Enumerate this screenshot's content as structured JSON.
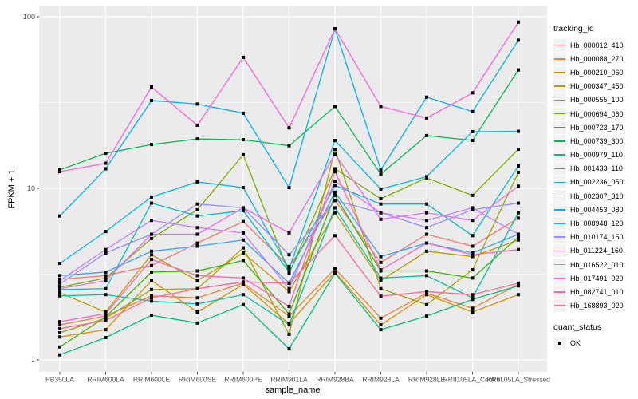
{
  "chart_data": {
    "type": "line",
    "title": "",
    "xlabel": "sample_name",
    "ylabel": "FPKM + 1",
    "x_categories": [
      "PB350LA",
      "RRIM600LA",
      "RRIM600LE",
      "RRIM600SE",
      "RRIM600PE",
      "RRIM901LA",
      "RRIM928BA",
      "RRIM928LA",
      "RRIM928LE",
      "RRII105LA_Control",
      "RRII105LA_Stressed"
    ],
    "y_scale": "log10",
    "y_ticks": [
      1,
      10,
      100
    ],
    "y_minor_ticks": [
      3.1623,
      31.6228
    ],
    "ylim": [
      0.85,
      115
    ],
    "grid": "major and minor, white on grey panel",
    "legend_position": "right",
    "colors": {
      "panel_bg": "#EBEBEB",
      "gridline": "#FFFFFF",
      "tick_label": "#4D4D4D",
      "tick_mark": "#333333",
      "marker": "#000000",
      "legend_key_bg": "#F2F2F2"
    },
    "marker": {
      "shape": "square",
      "size": 4
    },
    "legend": {
      "title": "tracking_id"
    },
    "quant_status": {
      "title": "quant_status",
      "items": [
        {
          "label": "OK",
          "marker": "black-square"
        }
      ]
    },
    "series": [
      {
        "name": "Hb_000012_410",
        "color": "#F8766D",
        "values": [
          2.95,
          3.1,
          3.55,
          4.8,
          6.4,
          3.5,
          8.5,
          3.7,
          5.4,
          4.6,
          6.7
        ]
      },
      {
        "name": "Hb_000088_270",
        "color": "#EA8331",
        "values": [
          1.6,
          1.8,
          2.36,
          2.3,
          2.8,
          1.8,
          3.4,
          1.75,
          2.45,
          2.0,
          2.75
        ]
      },
      {
        "name": "Hb_000210_060",
        "color": "#D89000",
        "values": [
          1.36,
          1.5,
          2.9,
          1.9,
          2.75,
          1.62,
          3.25,
          1.6,
          2.4,
          1.9,
          2.4
        ]
      },
      {
        "name": "Hb_000347_450",
        "color": "#C09B00",
        "values": [
          2.46,
          1.9,
          4.1,
          2.9,
          4.2,
          2.5,
          7.2,
          2.9,
          4.3,
          4.0,
          5.0
        ]
      },
      {
        "name": "Hb_000555_100",
        "color": "#A3A500",
        "values": [
          1.44,
          1.75,
          2.57,
          2.6,
          4.5,
          1.41,
          16.9,
          2.6,
          2.1,
          3.35,
          12.4
        ]
      },
      {
        "name": "Hb_000694_060",
        "color": "#7CAE00",
        "values": [
          2.65,
          3.0,
          5.1,
          7.5,
          15.7,
          3.2,
          13.0,
          8.7,
          11.5,
          9.1,
          16.9
        ]
      },
      {
        "name": "Hb_000723_170",
        "color": "#39B600",
        "values": [
          1.19,
          1.78,
          3.25,
          3.3,
          3.8,
          1.85,
          9.1,
          3.3,
          3.3,
          3.0,
          5.2
        ]
      },
      {
        "name": "Hb_000739_300",
        "color": "#00BB4E",
        "values": [
          12.8,
          16.0,
          18.0,
          19.4,
          19.2,
          17.7,
          30.0,
          12.1,
          20.3,
          19.0,
          49.0
        ]
      },
      {
        "name": "Hb_000979_110",
        "color": "#00BF7D",
        "values": [
          1.07,
          1.35,
          1.82,
          1.64,
          2.1,
          1.16,
          3.2,
          1.5,
          1.8,
          2.25,
          2.7
        ]
      },
      {
        "name": "Hb_001433_110",
        "color": "#00C1A3",
        "values": [
          2.36,
          2.4,
          2.2,
          2.12,
          2.4,
          1.6,
          7.7,
          3.0,
          3.1,
          2.3,
          7.2
        ]
      },
      {
        "name": "Hb_002236_050",
        "color": "#00BFC4",
        "values": [
          2.57,
          2.6,
          8.2,
          6.9,
          7.4,
          3.25,
          10.4,
          8.1,
          8.1,
          5.3,
          13.5
        ]
      },
      {
        "name": "Hb_002307_310",
        "color": "#00BAE0",
        "values": [
          3.65,
          5.6,
          8.9,
          10.9,
          10.1,
          3.4,
          19.0,
          9.9,
          11.7,
          21.4,
          21.5
        ]
      },
      {
        "name": "Hb_004453_080",
        "color": "#00B0F6",
        "values": [
          6.9,
          13.0,
          32.5,
          31.0,
          27.4,
          10.1,
          85.0,
          12.8,
          34.0,
          28.0,
          73.0
        ]
      },
      {
        "name": "Hb_008948_120",
        "color": "#35A2FF",
        "values": [
          3.1,
          3.25,
          4.3,
          4.6,
          5.0,
          2.8,
          9.5,
          4.0,
          4.8,
          4.2,
          5.4
        ]
      },
      {
        "name": "Hb_010174_150",
        "color": "#9590FF",
        "values": [
          2.77,
          4.2,
          5.4,
          8.1,
          7.7,
          4.1,
          8.5,
          7.2,
          5.9,
          7.5,
          8.2
        ]
      },
      {
        "name": "Hb_011224_160",
        "color": "#C77CFF",
        "values": [
          2.9,
          4.4,
          6.5,
          5.9,
          5.5,
          2.6,
          11.0,
          7.2,
          6.5,
          7.7,
          5.4
        ]
      },
      {
        "name": "Hb_016522_010",
        "color": "#E76BF3",
        "values": [
          2.6,
          2.9,
          5.4,
          5.4,
          7.7,
          5.5,
          15.8,
          6.6,
          7.2,
          6.5,
          10.3
        ]
      },
      {
        "name": "Hb_017491_020",
        "color": "#FA62DB",
        "values": [
          12.5,
          14.0,
          39.0,
          23.3,
          58.0,
          22.5,
          85.0,
          30.0,
          25.7,
          36.0,
          93.0
        ]
      },
      {
        "name": "Hb_082741_010",
        "color": "#FF62BC",
        "values": [
          1.67,
          1.86,
          3.85,
          3.1,
          3.0,
          2.05,
          12.5,
          3.35,
          4.8,
          4.1,
          4.4
        ]
      },
      {
        "name": "Hb_168893_020",
        "color": "#FF6598",
        "values": [
          1.52,
          1.7,
          2.3,
          2.6,
          2.85,
          2.8,
          5.3,
          2.35,
          2.5,
          2.4,
          2.8
        ]
      }
    ]
  }
}
